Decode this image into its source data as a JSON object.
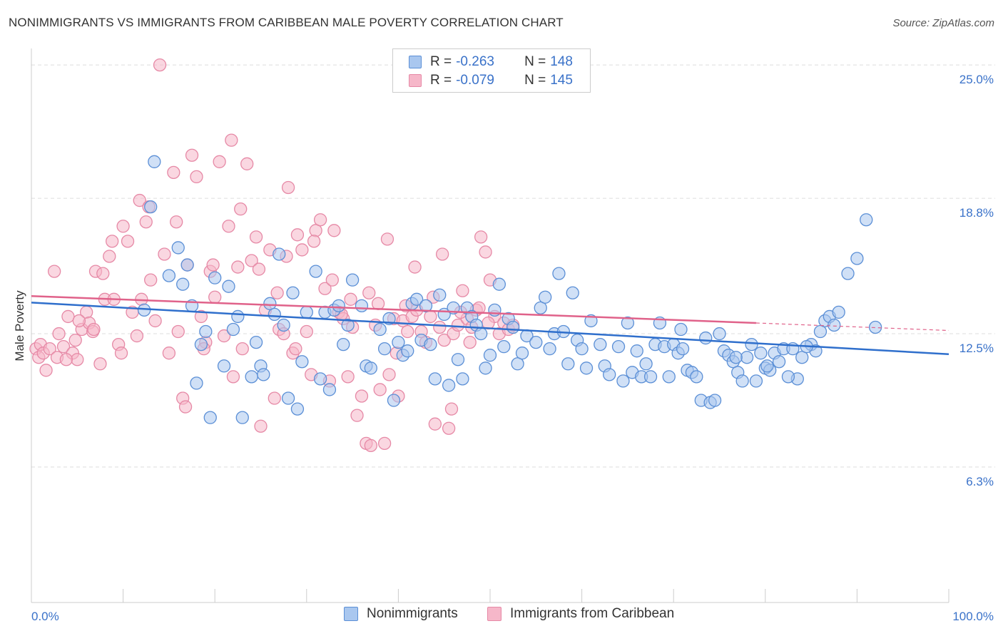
{
  "header": {
    "title": "NONIMMIGRANTS VS IMMIGRANTS FROM CARIBBEAN MALE POVERTY CORRELATION CHART",
    "source": "Source: ZipAtlas.com"
  },
  "colors": {
    "blue_fill": "#a9c7ef",
    "blue_stroke": "#5b8fd6",
    "blue_line": "#2f6fcc",
    "pink_fill": "#f6b7c9",
    "pink_stroke": "#e689a6",
    "pink_line": "#e0628a",
    "axis_text": "#3a72c9",
    "grid": "#dddddd"
  },
  "legend": {
    "rows": [
      {
        "r_label": "R =",
        "r_value": "-0.263",
        "n_label": "N =",
        "n_value": "148"
      },
      {
        "r_label": "R =",
        "r_value": "-0.079",
        "n_label": "N =",
        "n_value": "145"
      }
    ]
  },
  "bottom_legend": {
    "series_a": "Nonimmigrants",
    "series_b": "Immigrants from Caribbean"
  },
  "chart_data": {
    "type": "scatter",
    "title": "NONIMMIGRANTS VS IMMIGRANTS FROM CARIBBEAN MALE POVERTY CORRELATION CHART",
    "ylabel": "Male Poverty",
    "x_tick_labels": [
      "0.0%",
      "100.0%"
    ],
    "y_tick_labels": [
      "6.3%",
      "12.5%",
      "18.8%",
      "25.0%"
    ],
    "y_ticks": [
      6.3,
      12.5,
      18.8,
      25.0
    ],
    "xlim": [
      0,
      100
    ],
    "ylim": [
      0,
      25.6
    ],
    "grid": true,
    "series": [
      {
        "name": "Nonimmigrants",
        "r": -0.263,
        "n": 148,
        "trend": {
          "x": [
            0,
            100
          ],
          "y": [
            13.95,
            11.55
          ]
        },
        "points": [
          [
            12.3,
            13.6
          ],
          [
            13.0,
            18.4
          ],
          [
            13.4,
            20.5
          ],
          [
            15.0,
            15.2
          ],
          [
            16.0,
            16.5
          ],
          [
            16.5,
            14.8
          ],
          [
            17.0,
            15.7
          ],
          [
            17.5,
            13.8
          ],
          [
            18.0,
            10.2
          ],
          [
            18.5,
            12.0
          ],
          [
            19.0,
            12.6
          ],
          [
            19.5,
            8.6
          ],
          [
            20.0,
            15.1
          ],
          [
            21.0,
            11.0
          ],
          [
            21.5,
            14.7
          ],
          [
            22.0,
            12.7
          ],
          [
            22.5,
            13.3
          ],
          [
            23.0,
            8.6
          ],
          [
            24.0,
            10.5
          ],
          [
            24.5,
            12.1
          ],
          [
            25.0,
            11.0
          ],
          [
            25.3,
            10.6
          ],
          [
            26.0,
            13.9
          ],
          [
            26.5,
            13.4
          ],
          [
            27.0,
            16.2
          ],
          [
            27.5,
            12.9
          ],
          [
            28.0,
            9.5
          ],
          [
            28.5,
            14.4
          ],
          [
            29.0,
            9.0
          ],
          [
            29.5,
            11.2
          ],
          [
            30.0,
            13.5
          ],
          [
            31.0,
            15.4
          ],
          [
            31.5,
            10.4
          ],
          [
            32.0,
            13.5
          ],
          [
            32.5,
            9.9
          ],
          [
            33.0,
            13.6
          ],
          [
            33.5,
            13.8
          ],
          [
            34.0,
            12.0
          ],
          [
            34.5,
            12.9
          ],
          [
            35.0,
            15.0
          ],
          [
            36.0,
            13.8
          ],
          [
            36.5,
            11.0
          ],
          [
            37.0,
            10.9
          ],
          [
            38.0,
            12.7
          ],
          [
            38.5,
            11.8
          ],
          [
            39.0,
            13.2
          ],
          [
            39.5,
            9.4
          ],
          [
            40.0,
            12.1
          ],
          [
            40.5,
            11.5
          ],
          [
            41.0,
            11.7
          ],
          [
            41.5,
            13.9
          ],
          [
            42.0,
            14.1
          ],
          [
            42.5,
            12.2
          ],
          [
            43.0,
            13.8
          ],
          [
            43.5,
            12.0
          ],
          [
            44.0,
            10.4
          ],
          [
            44.5,
            14.3
          ],
          [
            45.0,
            13.4
          ],
          [
            45.5,
            10.1
          ],
          [
            46.0,
            13.7
          ],
          [
            46.5,
            11.3
          ],
          [
            47.0,
            10.4
          ],
          [
            47.5,
            13.7
          ],
          [
            48.0,
            13.3
          ],
          [
            48.5,
            12.9
          ],
          [
            49.0,
            12.5
          ],
          [
            49.5,
            10.9
          ],
          [
            50.0,
            11.5
          ],
          [
            50.5,
            13.6
          ],
          [
            51.0,
            14.8
          ],
          [
            51.5,
            11.9
          ],
          [
            52.0,
            13.2
          ],
          [
            52.5,
            12.8
          ],
          [
            53.0,
            11.1
          ],
          [
            53.5,
            11.6
          ],
          [
            54.0,
            12.4
          ],
          [
            55.0,
            12.1
          ],
          [
            55.5,
            13.7
          ],
          [
            56.0,
            14.2
          ],
          [
            56.5,
            11.8
          ],
          [
            57.0,
            12.5
          ],
          [
            57.5,
            15.3
          ],
          [
            58.0,
            12.6
          ],
          [
            58.5,
            11.1
          ],
          [
            59.0,
            14.4
          ],
          [
            59.5,
            12.2
          ],
          [
            60.0,
            11.8
          ],
          [
            60.5,
            10.9
          ],
          [
            61.0,
            13.1
          ],
          [
            62.0,
            12.0
          ],
          [
            62.5,
            11.0
          ],
          [
            63.0,
            10.6
          ],
          [
            64.0,
            11.9
          ],
          [
            64.5,
            10.3
          ],
          [
            65.0,
            13.0
          ],
          [
            65.5,
            10.7
          ],
          [
            66.0,
            11.7
          ],
          [
            66.5,
            10.5
          ],
          [
            67.0,
            11.1
          ],
          [
            68.0,
            12.0
          ],
          [
            68.5,
            13.0
          ],
          [
            69.0,
            11.9
          ],
          [
            69.5,
            10.5
          ],
          [
            70.0,
            12.0
          ],
          [
            70.5,
            11.6
          ],
          [
            71.0,
            11.8
          ],
          [
            71.5,
            10.8
          ],
          [
            72.0,
            10.7
          ],
          [
            73.0,
            9.4
          ],
          [
            73.5,
            12.3
          ],
          [
            74.0,
            9.3
          ],
          [
            74.5,
            9.4
          ],
          [
            75.0,
            12.5
          ],
          [
            75.5,
            11.7
          ],
          [
            76.0,
            11.5
          ],
          [
            76.5,
            11.2
          ],
          [
            77.0,
            10.7
          ],
          [
            77.5,
            10.3
          ],
          [
            78.0,
            11.4
          ],
          [
            78.5,
            12.0
          ],
          [
            79.0,
            10.3
          ],
          [
            79.5,
            11.6
          ],
          [
            80.0,
            10.9
          ],
          [
            80.5,
            10.8
          ],
          [
            81.0,
            11.6
          ],
          [
            81.5,
            11.2
          ],
          [
            82.0,
            11.8
          ],
          [
            83.0,
            11.8
          ],
          [
            83.5,
            10.4
          ],
          [
            84.0,
            11.4
          ],
          [
            85.0,
            12.0
          ],
          [
            85.5,
            11.7
          ],
          [
            86.0,
            12.6
          ],
          [
            86.5,
            13.1
          ],
          [
            87.0,
            13.3
          ],
          [
            88.0,
            13.5
          ],
          [
            89.0,
            15.3
          ],
          [
            90.0,
            16.0
          ],
          [
            91.0,
            17.8
          ],
          [
            92.0,
            12.8
          ],
          [
            87.5,
            12.9
          ],
          [
            84.5,
            11.9
          ],
          [
            82.5,
            10.5
          ],
          [
            80.2,
            11.0
          ],
          [
            76.8,
            11.4
          ],
          [
            72.5,
            10.5
          ],
          [
            70.8,
            12.7
          ],
          [
            67.5,
            10.5
          ]
        ]
      },
      {
        "name": "Immigrants from Caribbean",
        "r": -0.079,
        "n": 145,
        "trend": {
          "x": [
            0,
            79
          ],
          "y": [
            14.25,
            13.0
          ]
        },
        "trend_ext": {
          "x": [
            79,
            100
          ],
          "y": [
            13.0,
            12.65
          ]
        },
        "points": [
          [
            0.5,
            11.8
          ],
          [
            0.8,
            11.4
          ],
          [
            1.0,
            12.0
          ],
          [
            1.3,
            11.6
          ],
          [
            1.6,
            10.8
          ],
          [
            2.0,
            11.8
          ],
          [
            2.5,
            15.4
          ],
          [
            3.0,
            12.5
          ],
          [
            3.5,
            11.9
          ],
          [
            4.0,
            13.3
          ],
          [
            4.5,
            11.6
          ],
          [
            4.8,
            12.2
          ],
          [
            5.0,
            11.3
          ],
          [
            5.5,
            12.7
          ],
          [
            6.0,
            13.5
          ],
          [
            6.3,
            13.0
          ],
          [
            6.7,
            12.6
          ],
          [
            7.0,
            15.4
          ],
          [
            7.5,
            11.1
          ],
          [
            7.8,
            15.3
          ],
          [
            8.0,
            14.1
          ],
          [
            8.5,
            16.1
          ],
          [
            9.0,
            14.1
          ],
          [
            9.5,
            12.0
          ],
          [
            10.0,
            17.5
          ],
          [
            10.5,
            16.8
          ],
          [
            11.0,
            13.5
          ],
          [
            11.5,
            12.4
          ],
          [
            12.0,
            14.1
          ],
          [
            12.5,
            17.7
          ],
          [
            13.0,
            15.0
          ],
          [
            13.5,
            13.1
          ],
          [
            14.0,
            25.0
          ],
          [
            14.5,
            16.2
          ],
          [
            15.0,
            11.6
          ],
          [
            15.5,
            20.0
          ],
          [
            16.0,
            12.6
          ],
          [
            16.5,
            9.5
          ],
          [
            17.0,
            15.7
          ],
          [
            17.5,
            20.8
          ],
          [
            18.0,
            19.8
          ],
          [
            18.5,
            13.3
          ],
          [
            19.0,
            12.1
          ],
          [
            19.5,
            15.4
          ],
          [
            20.0,
            14.2
          ],
          [
            20.5,
            20.5
          ],
          [
            21.0,
            12.4
          ],
          [
            21.5,
            17.5
          ],
          [
            22.0,
            10.5
          ],
          [
            22.5,
            15.6
          ],
          [
            23.0,
            11.8
          ],
          [
            23.5,
            20.4
          ],
          [
            24.0,
            15.9
          ],
          [
            24.5,
            17.0
          ],
          [
            25.0,
            8.2
          ],
          [
            25.5,
            13.6
          ],
          [
            26.0,
            16.4
          ],
          [
            26.5,
            9.5
          ],
          [
            27.0,
            12.7
          ],
          [
            27.5,
            12.5
          ],
          [
            28.0,
            19.3
          ],
          [
            28.5,
            11.6
          ],
          [
            29.0,
            17.1
          ],
          [
            29.5,
            16.4
          ],
          [
            30.0,
            12.6
          ],
          [
            30.5,
            10.6
          ],
          [
            31.0,
            17.3
          ],
          [
            31.5,
            17.8
          ],
          [
            32.0,
            14.6
          ],
          [
            32.5,
            10.3
          ],
          [
            33.0,
            17.3
          ],
          [
            33.5,
            13.5
          ],
          [
            34.0,
            13.2
          ],
          [
            34.5,
            10.5
          ],
          [
            35.0,
            12.8
          ],
          [
            35.5,
            8.7
          ],
          [
            36.0,
            9.6
          ],
          [
            36.5,
            7.4
          ],
          [
            37.0,
            7.3
          ],
          [
            37.5,
            12.9
          ],
          [
            38.0,
            9.9
          ],
          [
            38.5,
            7.4
          ],
          [
            39.0,
            10.6
          ],
          [
            39.5,
            13.2
          ],
          [
            40.0,
            9.6
          ],
          [
            40.5,
            13.1
          ],
          [
            41.0,
            12.6
          ],
          [
            41.5,
            13.3
          ],
          [
            42.0,
            13.6
          ],
          [
            42.5,
            12.6
          ],
          [
            43.0,
            12.1
          ],
          [
            43.5,
            13.3
          ],
          [
            44.0,
            8.3
          ],
          [
            44.5,
            12.8
          ],
          [
            45.0,
            12.2
          ],
          [
            45.5,
            8.1
          ],
          [
            46.0,
            12.5
          ],
          [
            46.5,
            12.9
          ],
          [
            47.0,
            14.5
          ],
          [
            47.5,
            13.2
          ],
          [
            48.0,
            12.8
          ],
          [
            48.5,
            13.6
          ],
          [
            49.0,
            17.0
          ],
          [
            49.5,
            16.3
          ],
          [
            50.0,
            15.0
          ],
          [
            50.5,
            13.3
          ],
          [
            51.0,
            12.5
          ],
          [
            51.5,
            13.0
          ],
          [
            52.0,
            12.7
          ],
          [
            52.5,
            12.9
          ],
          [
            2.8,
            11.4
          ],
          [
            3.8,
            11.3
          ],
          [
            5.2,
            13.1
          ],
          [
            6.8,
            12.7
          ],
          [
            8.8,
            16.8
          ],
          [
            9.8,
            11.6
          ],
          [
            11.8,
            18.7
          ],
          [
            12.8,
            18.4
          ],
          [
            15.8,
            17.7
          ],
          [
            16.8,
            9.1
          ],
          [
            18.8,
            11.8
          ],
          [
            19.8,
            15.7
          ],
          [
            21.8,
            21.5
          ],
          [
            22.8,
            18.3
          ],
          [
            24.8,
            15.5
          ],
          [
            26.8,
            14.4
          ],
          [
            27.8,
            16.1
          ],
          [
            28.8,
            11.8
          ],
          [
            30.8,
            16.8
          ],
          [
            32.8,
            15.0
          ],
          [
            33.8,
            13.4
          ],
          [
            34.8,
            14.1
          ],
          [
            36.8,
            14.4
          ],
          [
            37.8,
            13.9
          ],
          [
            38.8,
            16.9
          ],
          [
            39.8,
            11.6
          ],
          [
            40.8,
            13.8
          ],
          [
            41.8,
            15.6
          ],
          [
            43.8,
            14.2
          ],
          [
            44.8,
            16.2
          ],
          [
            45.8,
            9.0
          ],
          [
            46.8,
            13.5
          ],
          [
            47.8,
            12.1
          ],
          [
            48.8,
            13.7
          ],
          [
            49.8,
            13.0
          ]
        ]
      }
    ]
  }
}
